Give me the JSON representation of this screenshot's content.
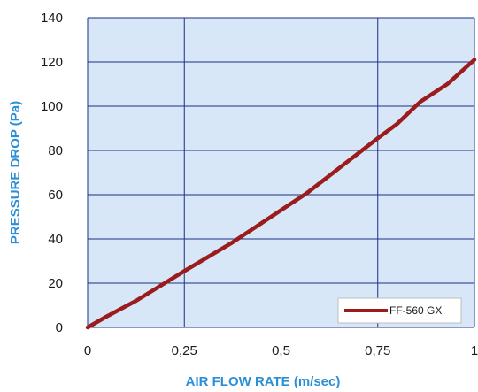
{
  "chart_data": {
    "type": "line",
    "title": "",
    "xlabel": "AIR FLOW RATE (m/sec)",
    "ylabel": "PRESSURE DROP (Pa)",
    "xlim": [
      0,
      1
    ],
    "ylim": [
      0,
      140
    ],
    "x_ticks": [
      0,
      0.25,
      0.5,
      0.75,
      1
    ],
    "x_tick_labels": [
      "0",
      "0,25",
      "0,5",
      "0,75",
      "1"
    ],
    "y_ticks": [
      0,
      20,
      40,
      60,
      80,
      100,
      120,
      140
    ],
    "y_tick_labels": [
      "0",
      "20",
      "40",
      "60",
      "80",
      "100",
      "120",
      "140"
    ],
    "grid": true,
    "legend": "bottom-right",
    "series": [
      {
        "name": "FF-560 GX",
        "color": "#9b1c1c",
        "x": [
          0,
          0.05,
          0.125,
          0.25,
          0.375,
          0.5,
          0.565,
          0.65,
          0.75,
          0.8,
          0.86,
          0.93,
          1
        ],
        "y": [
          0,
          5,
          12,
          25.5,
          38.5,
          53,
          60.5,
          72,
          85.5,
          92,
          102,
          110,
          121
        ]
      }
    ],
    "colors": {
      "plot_background": "#d7e7f7",
      "grid": "#1e2f86",
      "axis_title": "#2b8fd6"
    }
  }
}
